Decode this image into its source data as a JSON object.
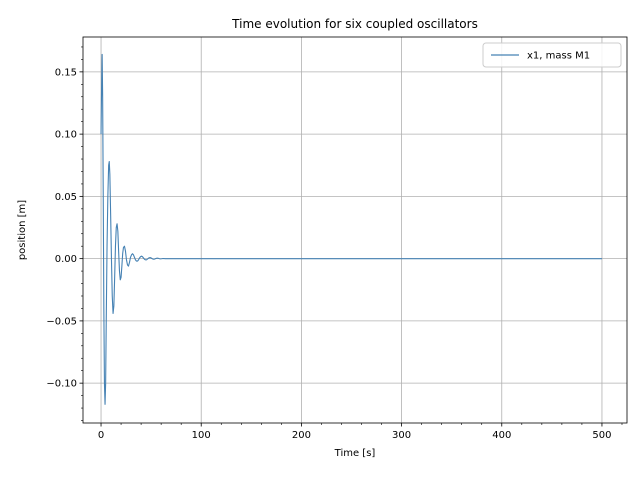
{
  "chart_data": {
    "type": "line",
    "title": "Time evolution for six coupled oscillators",
    "xlabel": "Time [s]",
    "ylabel": "position [m]",
    "xlim": [
      -18,
      525
    ],
    "ylim": [
      -0.132,
      0.178
    ],
    "xticks": [
      0,
      100,
      200,
      300,
      400,
      500
    ],
    "xtick_labels": [
      "0",
      "100",
      "200",
      "300",
      "400",
      "500"
    ],
    "yticks": [
      -0.1,
      -0.05,
      0.0,
      0.05,
      0.1,
      0.15
    ],
    "ytick_labels": [
      "−0.10",
      "−0.05",
      "0.00",
      "0.05",
      "0.10",
      "0.15"
    ],
    "grid": true,
    "legend_position": "top-right",
    "series": [
      {
        "name": "x1, mass M1",
        "color": "#4682b4",
        "points": [
          [
            0,
            0.1
          ],
          [
            0.6,
            0.14
          ],
          [
            1.1,
            0.164
          ],
          [
            1.6,
            0.13
          ],
          [
            2.2,
            0.05
          ],
          [
            2.8,
            -0.04
          ],
          [
            3.4,
            -0.1
          ],
          [
            4.0,
            -0.117
          ],
          [
            4.6,
            -0.1
          ],
          [
            5.2,
            -0.05
          ],
          [
            6.0,
            0.01
          ],
          [
            6.8,
            0.05
          ],
          [
            7.6,
            0.075
          ],
          [
            8.2,
            0.078
          ],
          [
            8.8,
            0.068
          ],
          [
            9.6,
            0.035
          ],
          [
            10.4,
            0.0
          ],
          [
            11.2,
            -0.03
          ],
          [
            12.0,
            -0.044
          ],
          [
            12.8,
            -0.038
          ],
          [
            13.6,
            -0.015
          ],
          [
            14.4,
            0.01
          ],
          [
            15.2,
            0.025
          ],
          [
            16.0,
            0.028
          ],
          [
            16.8,
            0.022
          ],
          [
            17.6,
            0.005
          ],
          [
            18.4,
            -0.01
          ],
          [
            19.2,
            -0.017
          ],
          [
            20.0,
            -0.015
          ],
          [
            20.8,
            -0.006
          ],
          [
            21.6,
            0.004
          ],
          [
            22.4,
            0.009
          ],
          [
            23.4,
            0.01
          ],
          [
            24.4,
            0.006
          ],
          [
            25.4,
            -0.001
          ],
          [
            26.4,
            -0.005
          ],
          [
            27.4,
            -0.006
          ],
          [
            28.4,
            -0.003
          ],
          [
            29.4,
            0.001
          ],
          [
            30.4,
            0.003
          ],
          [
            31.4,
            0.004
          ],
          [
            32.4,
            0.003
          ],
          [
            33.4,
            0.001
          ],
          [
            34.4,
            -0.001
          ],
          [
            35.4,
            -0.002
          ],
          [
            36.4,
            -0.002
          ],
          [
            37.4,
            -0.001
          ],
          [
            38.4,
            0.0005
          ],
          [
            39.4,
            0.0015
          ],
          [
            40.4,
            0.002
          ],
          [
            41.4,
            0.0015
          ],
          [
            42.4,
            0.0005
          ],
          [
            43.4,
            -0.0005
          ],
          [
            44.4,
            -0.001
          ],
          [
            45.4,
            -0.001
          ],
          [
            46.4,
            -0.0003
          ],
          [
            47.4,
            0.0004
          ],
          [
            48.4,
            0.0008
          ],
          [
            49.4,
            0.0008
          ],
          [
            50.4,
            0.0003
          ],
          [
            51.4,
            -0.0002
          ],
          [
            52.4,
            -0.0005
          ],
          [
            53.4,
            -0.0004
          ],
          [
            54.4,
            0.0
          ],
          [
            55.4,
            0.0003
          ],
          [
            56.4,
            0.0004
          ],
          [
            57.4,
            0.0002
          ],
          [
            58.4,
            -0.0001
          ],
          [
            59.4,
            -0.0002
          ],
          [
            60.4,
            -0.0001
          ],
          [
            62,
            0.0001
          ],
          [
            64,
            0.0
          ],
          [
            70,
            0.0
          ],
          [
            80,
            0.0
          ],
          [
            100,
            0.0
          ],
          [
            200,
            0.0
          ],
          [
            300,
            0.0
          ],
          [
            400,
            0.0
          ],
          [
            500,
            0.0
          ]
        ]
      }
    ]
  }
}
